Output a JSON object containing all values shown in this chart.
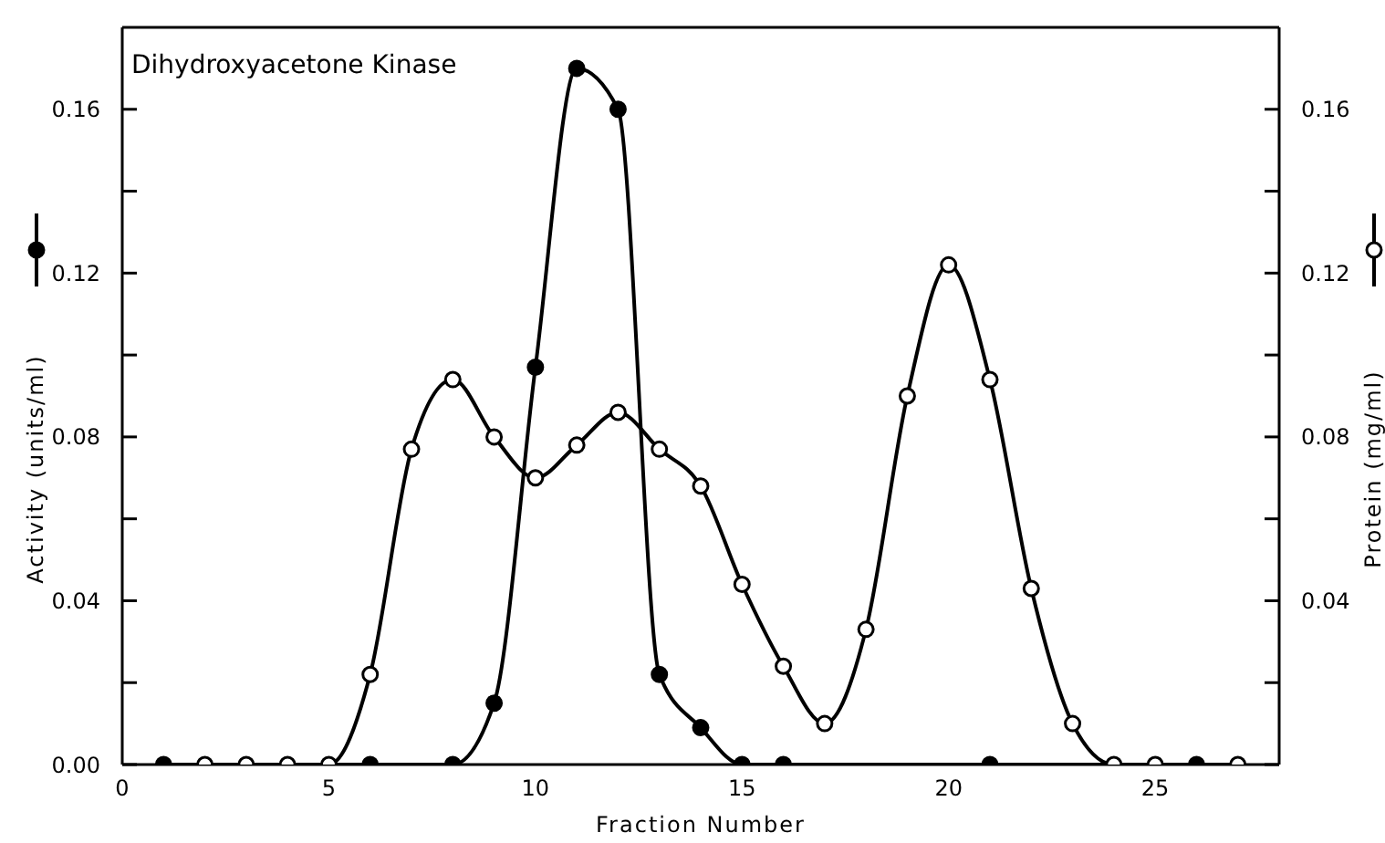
{
  "chart_data": {
    "type": "line",
    "title": "Dihydroxyacetone Kinase",
    "xlabel": "Fraction Number",
    "ylabel": "Activity (units/ml)",
    "y2label": "Protein (mg/ml)",
    "xlim": [
      0,
      28
    ],
    "xticks": [
      0,
      5,
      10,
      15,
      20,
      25
    ],
    "ylim": [
      0,
      0.18
    ],
    "yticks": [
      {
        "value": 0,
        "label": "0.00"
      },
      {
        "value": 0.02,
        "label": null
      },
      {
        "value": 0.04,
        "label": "0.04"
      },
      {
        "value": 0.06,
        "label": null
      },
      {
        "value": 0.08,
        "label": "0.08"
      },
      {
        "value": 0.1,
        "label": null
      },
      {
        "value": 0.12,
        "label": "0.12"
      },
      {
        "value": 0.14,
        "label": null
      },
      {
        "value": 0.16,
        "label": "0.16"
      }
    ],
    "y2lim": [
      0,
      0.18
    ],
    "y2ticks": [
      {
        "value": 0,
        "label": null
      },
      {
        "value": 0.02,
        "label": null
      },
      {
        "value": 0.04,
        "label": "0.04"
      },
      {
        "value": 0.06,
        "label": null
      },
      {
        "value": 0.08,
        "label": "0.08"
      },
      {
        "value": 0.1,
        "label": null
      },
      {
        "value": 0.12,
        "label": "0.12"
      },
      {
        "value": 0.14,
        "label": null
      },
      {
        "value": 0.16,
        "label": "0.16"
      }
    ],
    "marker": "circle",
    "series": [
      {
        "color": "#000000",
        "x": [
          1,
          6,
          8,
          9,
          10,
          11,
          12,
          13,
          14,
          15,
          16,
          21,
          26
        ],
        "values": [
          0,
          0,
          0,
          0.015,
          0.097,
          0.17,
          0.16,
          0.022,
          0.009,
          0,
          0,
          0,
          0
        ]
      },
      {
        "color": "#000000",
        "axis": "y2",
        "x": [
          2,
          3,
          4,
          5,
          6,
          7,
          8,
          9,
          10,
          11,
          12,
          13,
          14,
          15,
          16,
          17,
          18,
          19,
          20,
          21,
          22,
          23,
          24,
          25,
          27
        ],
        "values": [
          0,
          0,
          0,
          0,
          0.022,
          0.077,
          0.094,
          0.08,
          0.07,
          0.078,
          0.086,
          0.077,
          0.068,
          0.044,
          0.024,
          0.01,
          0.033,
          0.09,
          0.122,
          0.094,
          0.043,
          0.01,
          0,
          0,
          0
        ]
      }
    ]
  }
}
